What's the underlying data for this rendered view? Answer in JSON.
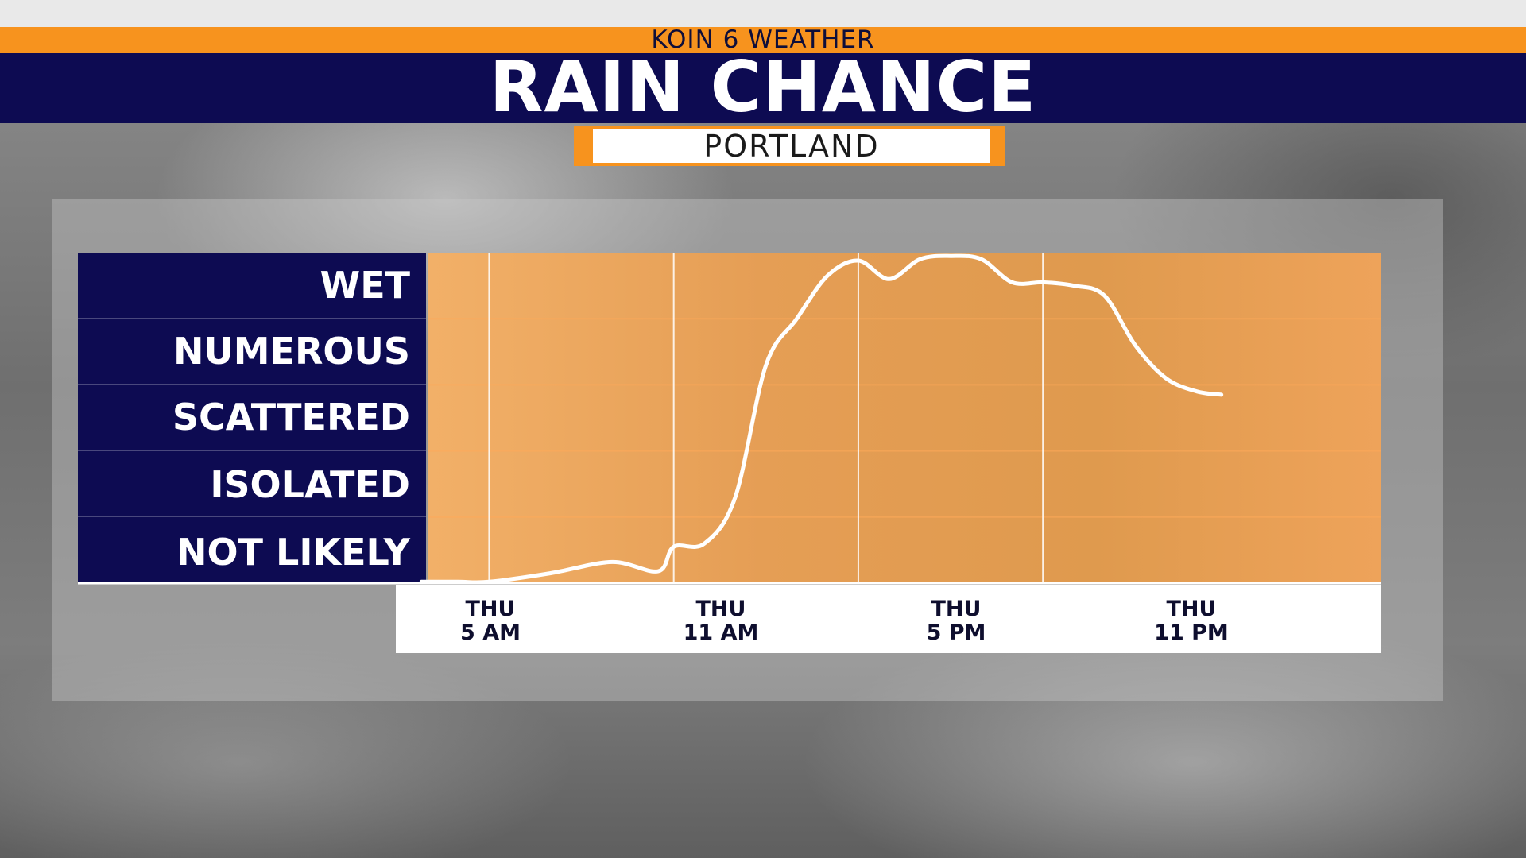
{
  "header": {
    "brand": "KOIN 6 WEATHER",
    "title": "RAIN CHANCE",
    "location": "PORTLAND"
  },
  "colors": {
    "navy": "#0d0b52",
    "orange": "#f7931e",
    "plot_fill": "#e8a050",
    "line": "#ffffff"
  },
  "chart_data": {
    "type": "line",
    "title": "RAIN CHANCE",
    "subtitle": "PORTLAND",
    "y_categories": [
      "NOT LIKELY",
      "ISOLATED",
      "SCATTERED",
      "NUMEROUS",
      "WET"
    ],
    "y_range": [
      0,
      5
    ],
    "x_range": [
      3,
      34
    ],
    "x_ticks": [
      {
        "hour": 5,
        "day": "THU",
        "time": "5 AM"
      },
      {
        "hour": 11,
        "day": "THU",
        "time": "11 AM"
      },
      {
        "hour": 17,
        "day": "THU",
        "time": "5 PM"
      },
      {
        "hour": 23,
        "day": "THU",
        "time": "11 PM"
      }
    ],
    "grid": true,
    "series": [
      {
        "points": [
          [
            2.8,
            0.02
          ],
          [
            4,
            0.02
          ],
          [
            5,
            0.02
          ],
          [
            7,
            0.15
          ],
          [
            9,
            0.32
          ],
          [
            10.5,
            0.18
          ],
          [
            11,
            0.55
          ],
          [
            12,
            0.6
          ],
          [
            13,
            1.3
          ],
          [
            14,
            3.3
          ],
          [
            15,
            4.0
          ],
          [
            16,
            4.65
          ],
          [
            17,
            4.88
          ],
          [
            18,
            4.6
          ],
          [
            19,
            4.9
          ],
          [
            20,
            4.95
          ],
          [
            21,
            4.9
          ],
          [
            22,
            4.55
          ],
          [
            23,
            4.55
          ],
          [
            24,
            4.5
          ],
          [
            25,
            4.35
          ],
          [
            26,
            3.6
          ],
          [
            27,
            3.1
          ],
          [
            28,
            2.9
          ],
          [
            28.8,
            2.85
          ]
        ]
      }
    ]
  }
}
